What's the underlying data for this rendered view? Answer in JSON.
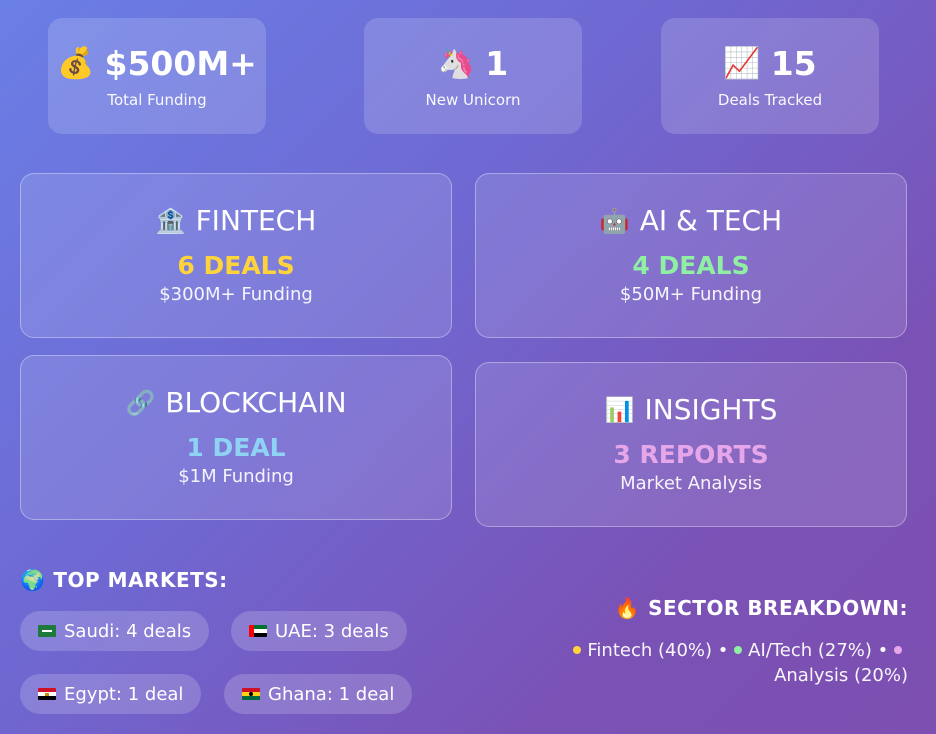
{
  "stats": [
    {
      "icon": "💰",
      "value": "$500M+",
      "label": "Total Funding"
    },
    {
      "icon": "🦄",
      "value": "1",
      "label": "New Unicorn"
    },
    {
      "icon": "📈",
      "value": "15",
      "label": "Deals Tracked"
    }
  ],
  "cards": [
    {
      "icon": "🏦",
      "title": "FINTECH",
      "count": "6 DEALS",
      "sub": "$300M+ Funding",
      "color": "#ffd43b"
    },
    {
      "icon": "🤖",
      "title": "AI & TECH",
      "count": "4 DEALS",
      "sub": "$50M+ Funding",
      "color": "#8ff0a4"
    },
    {
      "icon": "🔗",
      "title": "BLOCKCHAIN",
      "count": "1 DEAL",
      "sub": "$1M Funding",
      "color": "#8fd3f4"
    },
    {
      "icon": "📊",
      "title": "INSIGHTS",
      "count": "3 REPORTS",
      "sub": "Market Analysis",
      "color": "#e6a6ea"
    }
  ],
  "markets": {
    "icon": "🌍",
    "title": "TOP MARKETS:",
    "items": [
      {
        "flag": "saudi",
        "label": "Saudi: 4 deals"
      },
      {
        "flag": "uae",
        "label": "UAE: 3 deals"
      },
      {
        "flag": "egypt",
        "label": "Egypt: 1 deal"
      },
      {
        "flag": "ghana",
        "label": "Ghana: 1 deal"
      }
    ]
  },
  "sectors": {
    "icon": "🔥",
    "title": "SECTOR BREAKDOWN:",
    "items": [
      {
        "label": "Fintech (40%)",
        "color": "#ffd43b"
      },
      {
        "label": "AI/Tech (27%)",
        "color": "#8ff0a4"
      },
      {
        "label": "Analysis (20%)",
        "color": "#e6a6ea"
      }
    ],
    "separator": "•"
  }
}
